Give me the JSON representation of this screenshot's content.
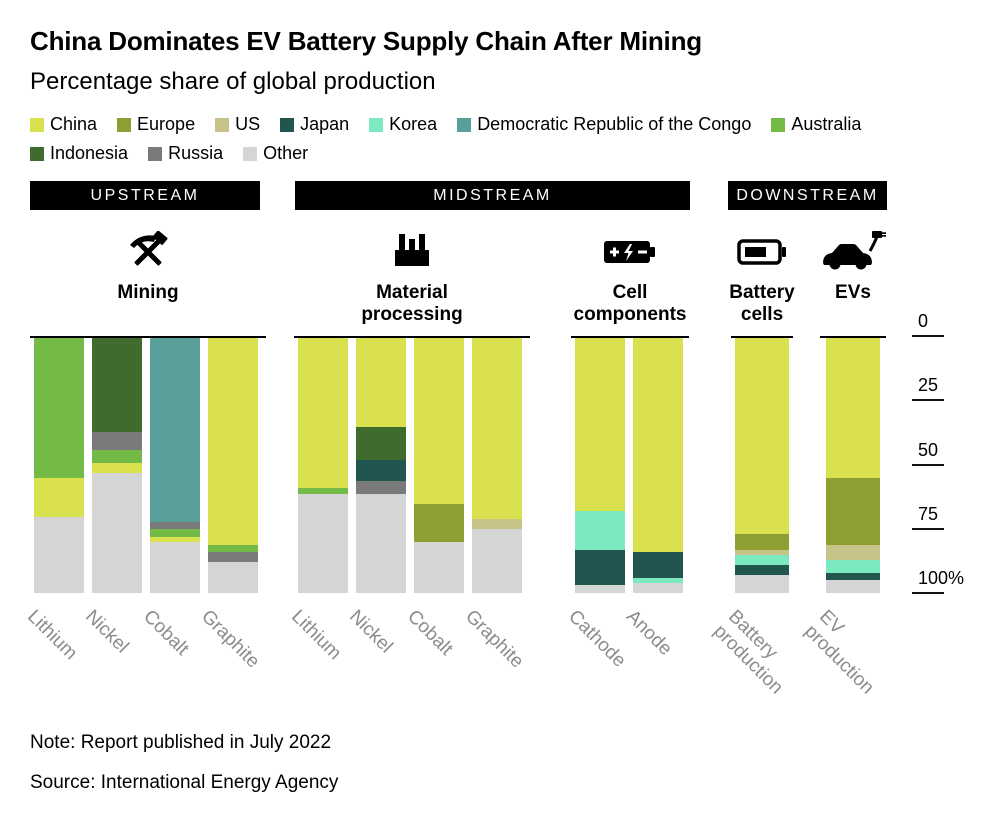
{
  "header": {
    "title": "China Dominates EV Battery Supply Chain After Mining",
    "subtitle": "Percentage share of global production"
  },
  "notes": {
    "note": "Note: Report published in July 2022",
    "source": "Source: International Energy Agency"
  },
  "chart_data": {
    "type": "bar",
    "stacked": true,
    "inverted_axis": true,
    "unit": "%",
    "ylim": [
      0,
      100
    ],
    "yticks": [
      "0",
      "25",
      "50",
      "75",
      "100%"
    ],
    "series_colors": {
      "China": "#d9e14e",
      "Europe": "#8f9e33",
      "US": "#c8c388",
      "Japan": "#20564f",
      "Korea": "#7ce9c1",
      "Democratic Republic of the Congo": "#5aa09a",
      "Australia": "#73ba46",
      "Indonesia": "#3f6c2d",
      "Russia": "#7a7a7a",
      "Other": "#d5d5d5"
    },
    "legend_rows": [
      [
        "China",
        "Europe",
        "US",
        "Japan",
        "Korea",
        "Democratic Republic of the Congo",
        "Australia"
      ],
      [
        "Indonesia",
        "Russia",
        "Other"
      ]
    ],
    "sections": [
      {
        "label": "UPSTREAM"
      },
      {
        "label": "MIDSTREAM"
      },
      {
        "label": "DOWNSTREAM"
      }
    ],
    "groups": [
      {
        "id": "mining",
        "title": "Mining",
        "icon": "pickaxe-hammer-icon",
        "bars": [
          {
            "label": "Lithium",
            "segments": [
              [
                "Australia",
                55
              ],
              [
                "China",
                15
              ],
              [
                "Other",
                30
              ]
            ]
          },
          {
            "label": "Nickel",
            "segments": [
              [
                "Indonesia",
                37
              ],
              [
                "Russia",
                7
              ],
              [
                "Australia",
                5
              ],
              [
                "China",
                4
              ],
              [
                "Other",
                47
              ]
            ]
          },
          {
            "label": "Cobalt",
            "segments": [
              [
                "Democratic Republic of the Congo",
                72
              ],
              [
                "Russia",
                3
              ],
              [
                "Australia",
                3
              ],
              [
                "China",
                2
              ],
              [
                "Other",
                20
              ]
            ]
          },
          {
            "label": "Graphite",
            "segments": [
              [
                "China",
                81
              ],
              [
                "Australia",
                3
              ],
              [
                "Russia",
                4
              ],
              [
                "Other",
                12
              ]
            ]
          }
        ]
      },
      {
        "id": "material_processing",
        "title": "Material\nprocessing",
        "icon": "factory-icon",
        "bars": [
          {
            "label": "Lithium",
            "segments": [
              [
                "China",
                59
              ],
              [
                "Australia",
                2
              ],
              [
                "Other",
                39
              ]
            ]
          },
          {
            "label": "Nickel",
            "segments": [
              [
                "China",
                35
              ],
              [
                "Indonesia",
                13
              ],
              [
                "Japan",
                8
              ],
              [
                "Russia",
                5
              ],
              [
                "Other",
                39
              ]
            ]
          },
          {
            "label": "Cobalt",
            "segments": [
              [
                "China",
                65
              ],
              [
                "Europe",
                15
              ],
              [
                "Other",
                20
              ]
            ]
          },
          {
            "label": "Graphite",
            "segments": [
              [
                "China",
                71
              ],
              [
                "US",
                4
              ],
              [
                "Other",
                25
              ]
            ]
          }
        ]
      },
      {
        "id": "cell_components",
        "title": "Cell\ncomponents",
        "icon": "battery-charge-icon",
        "bars": [
          {
            "label": "Cathode",
            "segments": [
              [
                "China",
                68
              ],
              [
                "Korea",
                15
              ],
              [
                "Japan",
                14
              ],
              [
                "Other",
                3
              ]
            ]
          },
          {
            "label": "Anode",
            "segments": [
              [
                "China",
                84
              ],
              [
                "Japan",
                10
              ],
              [
                "Korea",
                2
              ],
              [
                "Other",
                4
              ]
            ]
          }
        ]
      },
      {
        "id": "battery_cells",
        "title": "Battery\ncells",
        "icon": "battery-icon",
        "bars": [
          {
            "label": "Battery\nproduction",
            "segments": [
              [
                "China",
                77
              ],
              [
                "Europe",
                6
              ],
              [
                "US",
                2
              ],
              [
                "Korea",
                4
              ],
              [
                "Japan",
                4
              ],
              [
                "Other",
                7
              ]
            ]
          }
        ]
      },
      {
        "id": "evs",
        "title": "EVs",
        "icon": "ev-car-icon",
        "bars": [
          {
            "label": "EV\nproduction",
            "segments": [
              [
                "China",
                55
              ],
              [
                "Europe",
                26
              ],
              [
                "US",
                6
              ],
              [
                "Korea",
                5
              ],
              [
                "Japan",
                3
              ],
              [
                "Other",
                5
              ]
            ]
          }
        ]
      }
    ]
  }
}
